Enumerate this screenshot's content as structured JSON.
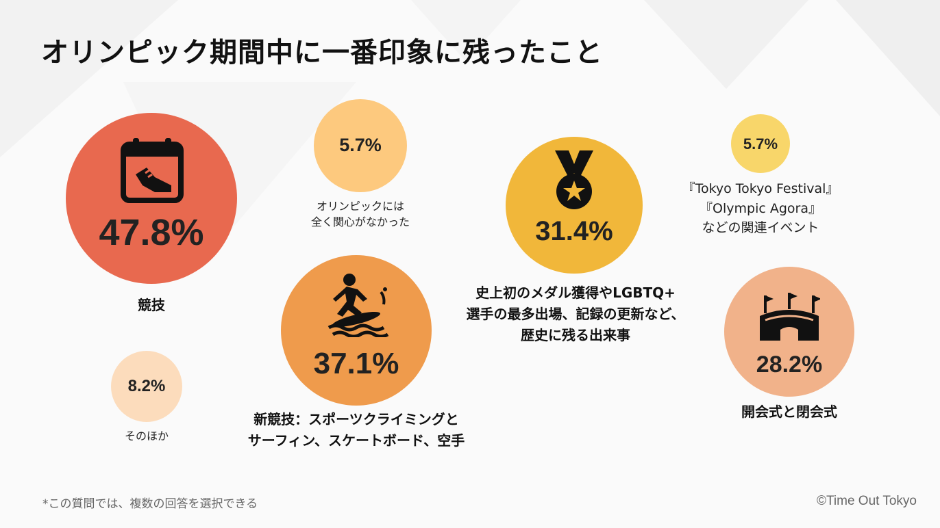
{
  "title": "オリンピック期間中に一番印象に残ったこと",
  "colors": {
    "competition": "#e8694f",
    "medal": "#f1b73a",
    "new_sports": "#ef9b4c",
    "ceremony": "#f1b28a",
    "no_interest": "#fdc97e",
    "events": "#f8d66a",
    "other": "#fcdcbc"
  },
  "chart_data": {
    "type": "bubble",
    "title": "オリンピック期間中に一番印象に残ったこと",
    "unit": "%",
    "items": [
      {
        "key": "competition",
        "value": 47.8,
        "pct_label": "47.8%",
        "label_lines": [
          "競技"
        ],
        "icon": "calendar-shoe-icon"
      },
      {
        "key": "medal",
        "value": 31.4,
        "pct_label": "31.4%",
        "label_lines": [
          "史上初のメダル獲得やLGBTQ+",
          "選手の最多出場、記録の更新など、",
          "歴史に残る出来事"
        ],
        "icon": "medal-icon"
      },
      {
        "key": "new_sports",
        "value": 37.1,
        "pct_label": "37.1%",
        "label_lines": [
          "新競技：スポーツクライミングと",
          "サーフィン、スケートボード、空手"
        ],
        "icon": "surfer-icon"
      },
      {
        "key": "ceremony",
        "value": 28.2,
        "pct_label": "28.2%",
        "label_lines": [
          "開会式と閉会式"
        ],
        "icon": "stadium-icon"
      },
      {
        "key": "no_interest",
        "value": 5.7,
        "pct_label": "5.7%",
        "label_lines": [
          "オリンピックには",
          "全く関心がなかった"
        ]
      },
      {
        "key": "events",
        "value": 5.7,
        "pct_label": "5.7%",
        "label_lines": [
          "『Tokyo Tokyo Festival』",
          "『Olympic Agora』",
          "などの関連イベント"
        ]
      },
      {
        "key": "other",
        "value": 8.2,
        "pct_label": "8.2%",
        "label_lines": [
          "そのほか"
        ]
      }
    ]
  },
  "footnote": "*この質問では、複数の回答を選択できる",
  "credit": "©Time Out Tokyo"
}
